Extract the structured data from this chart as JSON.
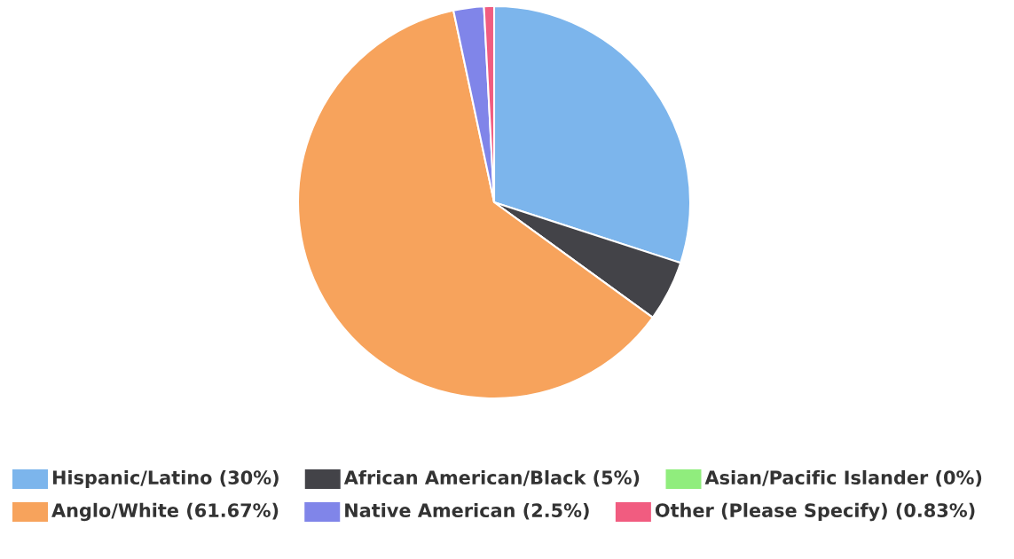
{
  "chart_data": {
    "type": "pie",
    "legend": "bottom",
    "categories": [
      "Hispanic/Latino (30%)",
      "African American/Black (5%)",
      "Asian/Pacific Islander (0%)",
      "Anglo/White (61.67%)",
      "Native American (2.5%)",
      "Other (Please Specify) (0.83%)"
    ],
    "values": [
      30,
      5,
      0,
      61.67,
      2.5,
      0.83
    ],
    "colors": [
      "#7cb5ec",
      "#434348",
      "#90ed7d",
      "#f7a35c",
      "#8085e9",
      "#f15c80"
    ]
  }
}
